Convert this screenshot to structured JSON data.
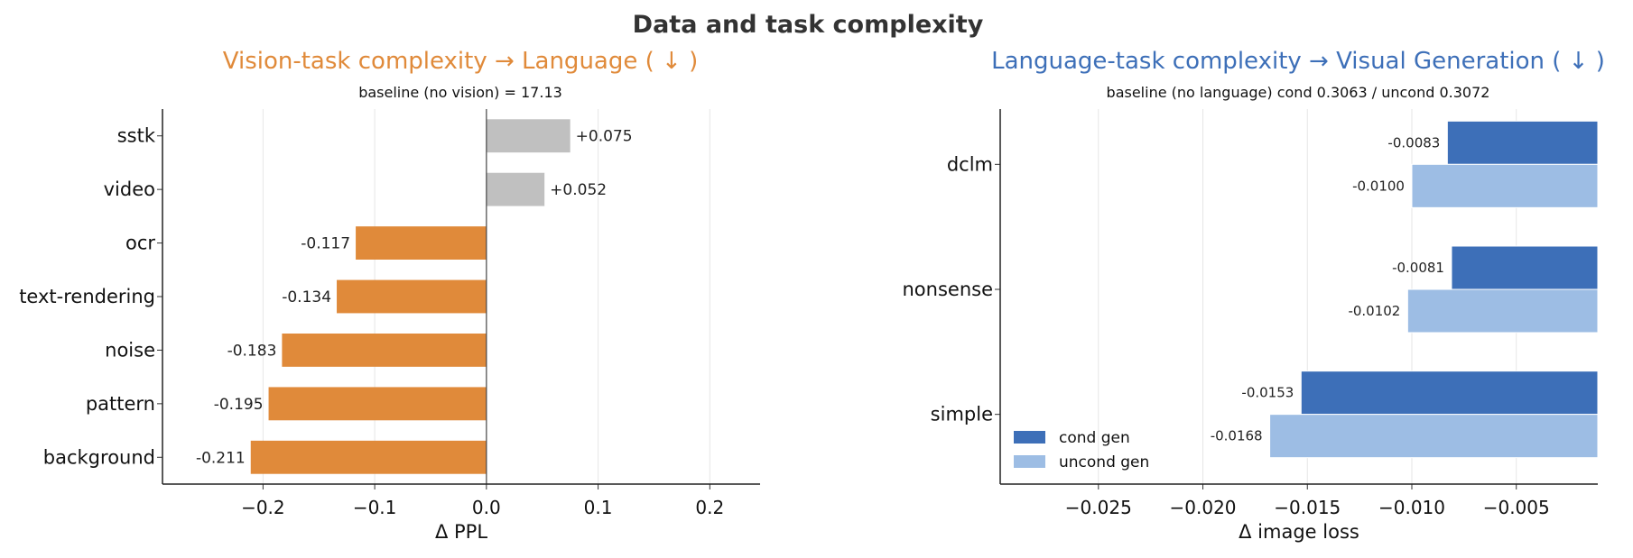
{
  "suptitle": "Data and task complexity",
  "chart_data": [
    {
      "type": "bar",
      "orientation": "horizontal",
      "title": "Vision-task complexity  →  Language ( ↓ )",
      "title_color": "#e08a3a",
      "subtitle": "baseline (no vision) = 17.13",
      "xlabel": "Δ PPL",
      "ylabel": "",
      "xlim": [
        -0.29,
        0.245
      ],
      "xticks": [
        -0.2,
        -0.1,
        0.0,
        0.1,
        0.2
      ],
      "xtick_labels": [
        "−0.2",
        "−0.1",
        "0.0",
        "0.1",
        "0.2"
      ],
      "grid": "vertical",
      "categories": [
        "sstk",
        "video",
        "ocr",
        "text-rendering",
        "noise",
        "pattern",
        "background"
      ],
      "values": [
        0.075,
        0.052,
        -0.117,
        -0.134,
        -0.183,
        -0.195,
        -0.211
      ],
      "value_labels": [
        "+0.075",
        "+0.052",
        "-0.117",
        "-0.134",
        "-0.183",
        "-0.195",
        "-0.211"
      ],
      "colors": {
        "positive": "#c0c0c0",
        "negative": "#e08a3a"
      }
    },
    {
      "type": "bar",
      "orientation": "horizontal",
      "title": "Language-task complexity  →  Visual Generation ( ↓ )",
      "title_color": "#3d6fb8",
      "subtitle": "baseline (no language)  cond 0.3063 / uncond 0.3072",
      "xlabel": "Δ image loss",
      "ylabel": "",
      "xlim": [
        -0.0297,
        -0.0011
      ],
      "xticks": [
        -0.025,
        -0.02,
        -0.015,
        -0.01,
        -0.005
      ],
      "xtick_labels": [
        "−0.025",
        "−0.020",
        "−0.015",
        "−0.010",
        "−0.005"
      ],
      "grid": "vertical",
      "categories": [
        "dclm",
        "nonsense",
        "simple"
      ],
      "series": [
        {
          "name": "cond gen",
          "color": "#3d6fb8",
          "values": [
            -0.0083,
            -0.0081,
            -0.0153
          ],
          "value_labels": [
            "-0.0083",
            "-0.0081",
            "-0.0153"
          ]
        },
        {
          "name": "uncond gen",
          "color": "#9dbde4",
          "values": [
            -0.01,
            -0.0102,
            -0.0168
          ],
          "value_labels": [
            "-0.0100",
            "-0.0102",
            "-0.0168"
          ]
        }
      ],
      "legend": "lower-left"
    }
  ]
}
